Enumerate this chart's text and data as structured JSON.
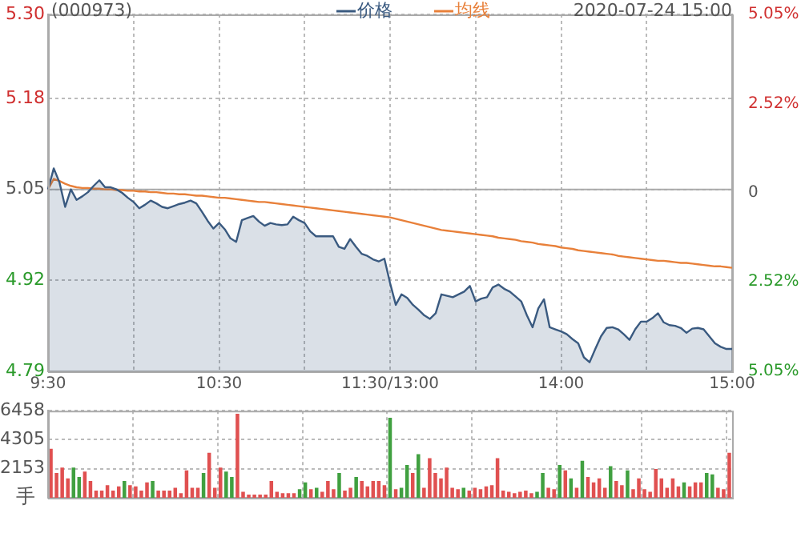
{
  "chart_data": [
    {
      "type": "line",
      "title": "(000973)",
      "annotations": [
        "2020-07-24 15:00"
      ],
      "legend": "top",
      "grid": true,
      "categories": [
        "9:30",
        null,
        null,
        null,
        null,
        null,
        null,
        null,
        null,
        null,
        null,
        null,
        null,
        null,
        null,
        null,
        null,
        null,
        null,
        null,
        null,
        null,
        null,
        null,
        null,
        null,
        null,
        null,
        null,
        null,
        "10:30",
        null,
        null,
        null,
        null,
        null,
        null,
        null,
        null,
        null,
        null,
        null,
        null,
        null,
        null,
        null,
        null,
        null,
        null,
        null,
        null,
        null,
        null,
        null,
        null,
        null,
        null,
        null,
        null,
        null,
        "11:30/13:00",
        null,
        null,
        null,
        null,
        null,
        null,
        null,
        null,
        null,
        null,
        null,
        null,
        null,
        null,
        null,
        null,
        null,
        null,
        null,
        null,
        null,
        null,
        null,
        null,
        null,
        null,
        null,
        null,
        null,
        "14:00",
        null,
        null,
        null,
        null,
        null,
        null,
        null,
        null,
        null,
        null,
        null,
        null,
        null,
        null,
        null,
        null,
        null,
        null,
        null,
        null,
        null,
        null,
        null,
        null,
        null,
        null,
        null,
        null,
        null,
        "15:00"
      ],
      "ylim": [
        4.79,
        5.3
      ],
      "yticks": [
        4.79,
        4.92,
        5.05,
        5.18,
        {
          "value": 5.3,
          "label": "5.30"
        }
      ],
      "y2lim": [
        -5.05,
        5.05
      ],
      "y2ticks": [
        {
          "value": -5.05,
          "label": "5.05%"
        },
        {
          "value": -2.52,
          "label": "2.52%"
        },
        0,
        {
          "value": 2.52,
          "label": "2.52%"
        },
        {
          "value": 5.05,
          "label": "5.05%"
        }
      ],
      "ref_lines": [
        {
          "axis": "y",
          "value": 5.05,
          "color": "#aaaaaa"
        }
      ],
      "series": [
        {
          "name": "价格",
          "type": "area",
          "color": "#3a5a80",
          "values": [
            5.05,
            5.08,
            5.06,
            5.025,
            5.05,
            5.035,
            5.04,
            5.046,
            5.055,
            5.063,
            5.053,
            5.053,
            5.05,
            5.045,
            5.038,
            5.032,
            5.023,
            5.028,
            5.034,
            5.03,
            5.025,
            5.023,
            5.026,
            5.029,
            5.031,
            5.034,
            5.03,
            5.018,
            5.005,
            4.994,
            5.002,
            4.993,
            4.98,
            4.975,
            5.006,
            5.009,
            5.012,
            5.004,
            4.998,
            5.002,
            5.0,
            4.999,
            5.0,
            5.011,
            5.006,
            5.002,
            4.99,
            4.983,
            4.983,
            4.983,
            4.983,
            4.968,
            4.965,
            4.979,
            4.968,
            4.958,
            4.955,
            4.95,
            4.947,
            4.951,
            4.916,
            4.885,
            4.9,
            4.895,
            4.885,
            4.878,
            4.87,
            4.865,
            4.873,
            4.9,
            4.898,
            4.896,
            4.9,
            4.904,
            4.912,
            4.89,
            4.894,
            4.896,
            4.91,
            4.914,
            4.908,
            4.904,
            4.897,
            4.89,
            4.87,
            4.853,
            4.88,
            4.893,
            4.853,
            4.85,
            4.847,
            4.843,
            4.836,
            4.83,
            4.81,
            4.803,
            4.822,
            4.84,
            4.852,
            4.853,
            4.85,
            4.843,
            4.835,
            4.85,
            4.861,
            4.861,
            4.866,
            4.873,
            4.86,
            4.856,
            4.855,
            4.852,
            4.845,
            4.851,
            4.852,
            4.85,
            4.84,
            4.83,
            4.825,
            4.822,
            4.822
          ]
        },
        {
          "name": "均线",
          "type": "line",
          "color": "#e8803a",
          "values": [
            5.05,
            5.065,
            5.062,
            5.058,
            5.055,
            5.053,
            5.052,
            5.052,
            5.051,
            5.051,
            5.05,
            5.05,
            5.049,
            5.049,
            5.048,
            5.048,
            5.047,
            5.047,
            5.046,
            5.046,
            5.045,
            5.044,
            5.044,
            5.043,
            5.043,
            5.042,
            5.041,
            5.041,
            5.04,
            5.039,
            5.038,
            5.038,
            5.037,
            5.036,
            5.035,
            5.034,
            5.033,
            5.032,
            5.032,
            5.031,
            5.03,
            5.029,
            5.028,
            5.027,
            5.026,
            5.025,
            5.024,
            5.023,
            5.022,
            5.021,
            5.02,
            5.019,
            5.018,
            5.017,
            5.016,
            5.015,
            5.014,
            5.013,
            5.012,
            5.011,
            5.01,
            5.008,
            5.006,
            5.004,
            5.002,
            5.0,
            4.998,
            4.996,
            4.994,
            4.992,
            4.991,
            4.99,
            4.989,
            4.988,
            4.987,
            4.986,
            4.985,
            4.984,
            4.983,
            4.981,
            4.98,
            4.979,
            4.978,
            4.976,
            4.975,
            4.974,
            4.972,
            4.971,
            4.97,
            4.969,
            4.967,
            4.966,
            4.965,
            4.963,
            4.962,
            4.961,
            4.96,
            4.959,
            4.958,
            4.957,
            4.955,
            4.954,
            4.953,
            4.952,
            4.951,
            4.95,
            4.949,
            4.948,
            4.948,
            4.947,
            4.946,
            4.945,
            4.945,
            4.944,
            4.943,
            4.942,
            4.941,
            4.94,
            4.94,
            4.939,
            4.938
          ]
        }
      ]
    },
    {
      "type": "bar",
      "ylabel": "手",
      "grid": true,
      "categories": [
        null,
        null,
        null,
        null,
        null,
        null,
        null,
        null,
        null,
        null,
        null,
        null,
        null,
        null,
        null,
        null,
        null,
        null,
        null,
        null,
        null,
        null,
        null,
        null,
        null,
        null,
        null,
        null,
        null,
        null,
        null,
        null,
        null,
        null,
        null,
        null,
        null,
        null,
        null,
        null,
        null,
        null,
        null,
        null,
        null,
        null,
        null,
        null,
        null,
        null,
        null,
        null,
        null,
        null,
        null,
        null,
        null,
        null,
        null,
        null,
        null,
        null,
        null,
        null,
        null,
        null,
        null,
        null,
        null,
        null,
        null,
        null,
        null,
        null,
        null,
        null,
        null,
        null,
        null,
        null,
        null,
        null,
        null,
        null,
        null,
        null,
        null,
        null,
        null,
        null,
        null,
        null,
        null,
        null,
        null,
        null,
        null,
        null,
        null,
        null,
        null,
        null,
        null,
        null,
        null,
        null,
        null,
        null,
        null,
        null,
        null,
        null,
        null,
        null,
        null,
        null,
        null,
        null,
        null,
        null,
        null
      ],
      "ylim": [
        0,
        6458
      ],
      "yticks": [
        2153,
        4305,
        6458
      ],
      "values": [
        3600,
        1800,
        2200,
        1400,
        2200,
        1500,
        1900,
        1200,
        500,
        500,
        900,
        500,
        800,
        1200,
        900,
        800,
        500,
        1100,
        1200,
        500,
        500,
        500,
        700,
        300,
        2000,
        700,
        700,
        1800,
        3300,
        700,
        2200,
        1900,
        1500,
        6200,
        400,
        200,
        200,
        200,
        200,
        1200,
        400,
        300,
        300,
        300,
        600,
        1100,
        600,
        700,
        400,
        1200,
        600,
        1800,
        500,
        700,
        1500,
        1200,
        800,
        1200,
        1200,
        900,
        5900,
        600,
        700,
        2400,
        1800,
        3200,
        700,
        2900,
        1800,
        1400,
        2200,
        700,
        600,
        700,
        500,
        700,
        600,
        800,
        900,
        2900,
        500,
        400,
        300,
        400,
        500,
        300,
        400,
        1800,
        700,
        600,
        2400,
        2000,
        1400,
        700,
        2700,
        1500,
        1100,
        1400,
        700,
        2300,
        1200,
        900,
        2000,
        600,
        1400,
        600,
        400,
        2100,
        1400,
        700,
        1400,
        800,
        1100,
        800,
        1100,
        1100,
        1800,
        1700,
        700,
        600,
        3300
      ],
      "colors": [
        "#e05050",
        "#e05050",
        "#e05050",
        "#e05050",
        "#40a040",
        "#40a040",
        "#e05050",
        "#e05050",
        "#e05050",
        "#e05050",
        "#e05050",
        "#e05050",
        "#e05050",
        "#40a040",
        "#e05050",
        "#e05050",
        "#e05050",
        "#e05050",
        "#40a040",
        "#e05050",
        "#e05050",
        "#e05050",
        "#e05050",
        "#e05050",
        "#e05050",
        "#e05050",
        "#e05050",
        "#40a040",
        "#e05050",
        "#e05050",
        "#e05050",
        "#40a040",
        "#40a040",
        "#e05050",
        "#e05050",
        "#e05050",
        "#e05050",
        "#e05050",
        "#e05050",
        "#e05050",
        "#e05050",
        "#e05050",
        "#e05050",
        "#e05050",
        "#40a040",
        "#40a040",
        "#e05050",
        "#40a040",
        "#e05050",
        "#e05050",
        "#e05050",
        "#40a040",
        "#e05050",
        "#e05050",
        "#40a040",
        "#e05050",
        "#e05050",
        "#e05050",
        "#e05050",
        "#e05050",
        "#40a040",
        "#e05050",
        "#40a040",
        "#40a040",
        "#e05050",
        "#40a040",
        "#e05050",
        "#e05050",
        "#e05050",
        "#e05050",
        "#e05050",
        "#e05050",
        "#e05050",
        "#40a040",
        "#e05050",
        "#e05050",
        "#e05050",
        "#e05050",
        "#e05050",
        "#e05050",
        "#e05050",
        "#e05050",
        "#e05050",
        "#e05050",
        "#e05050",
        "#e05050",
        "#40a040",
        "#40a040",
        "#e05050",
        "#e05050",
        "#40a040",
        "#e05050",
        "#40a040",
        "#e05050",
        "#40a040",
        "#e05050",
        "#e05050",
        "#e05050",
        "#e05050",
        "#40a040",
        "#e05050",
        "#e05050",
        "#40a040",
        "#e05050",
        "#e05050",
        "#e05050",
        "#e05050",
        "#e05050",
        "#e05050",
        "#e05050",
        "#e05050",
        "#e05050",
        "#40a040",
        "#e05050",
        "#e05050",
        "#e05050",
        "#40a040",
        "#40a040",
        "#e05050",
        "#e05050",
        "#e05050"
      ]
    }
  ]
}
